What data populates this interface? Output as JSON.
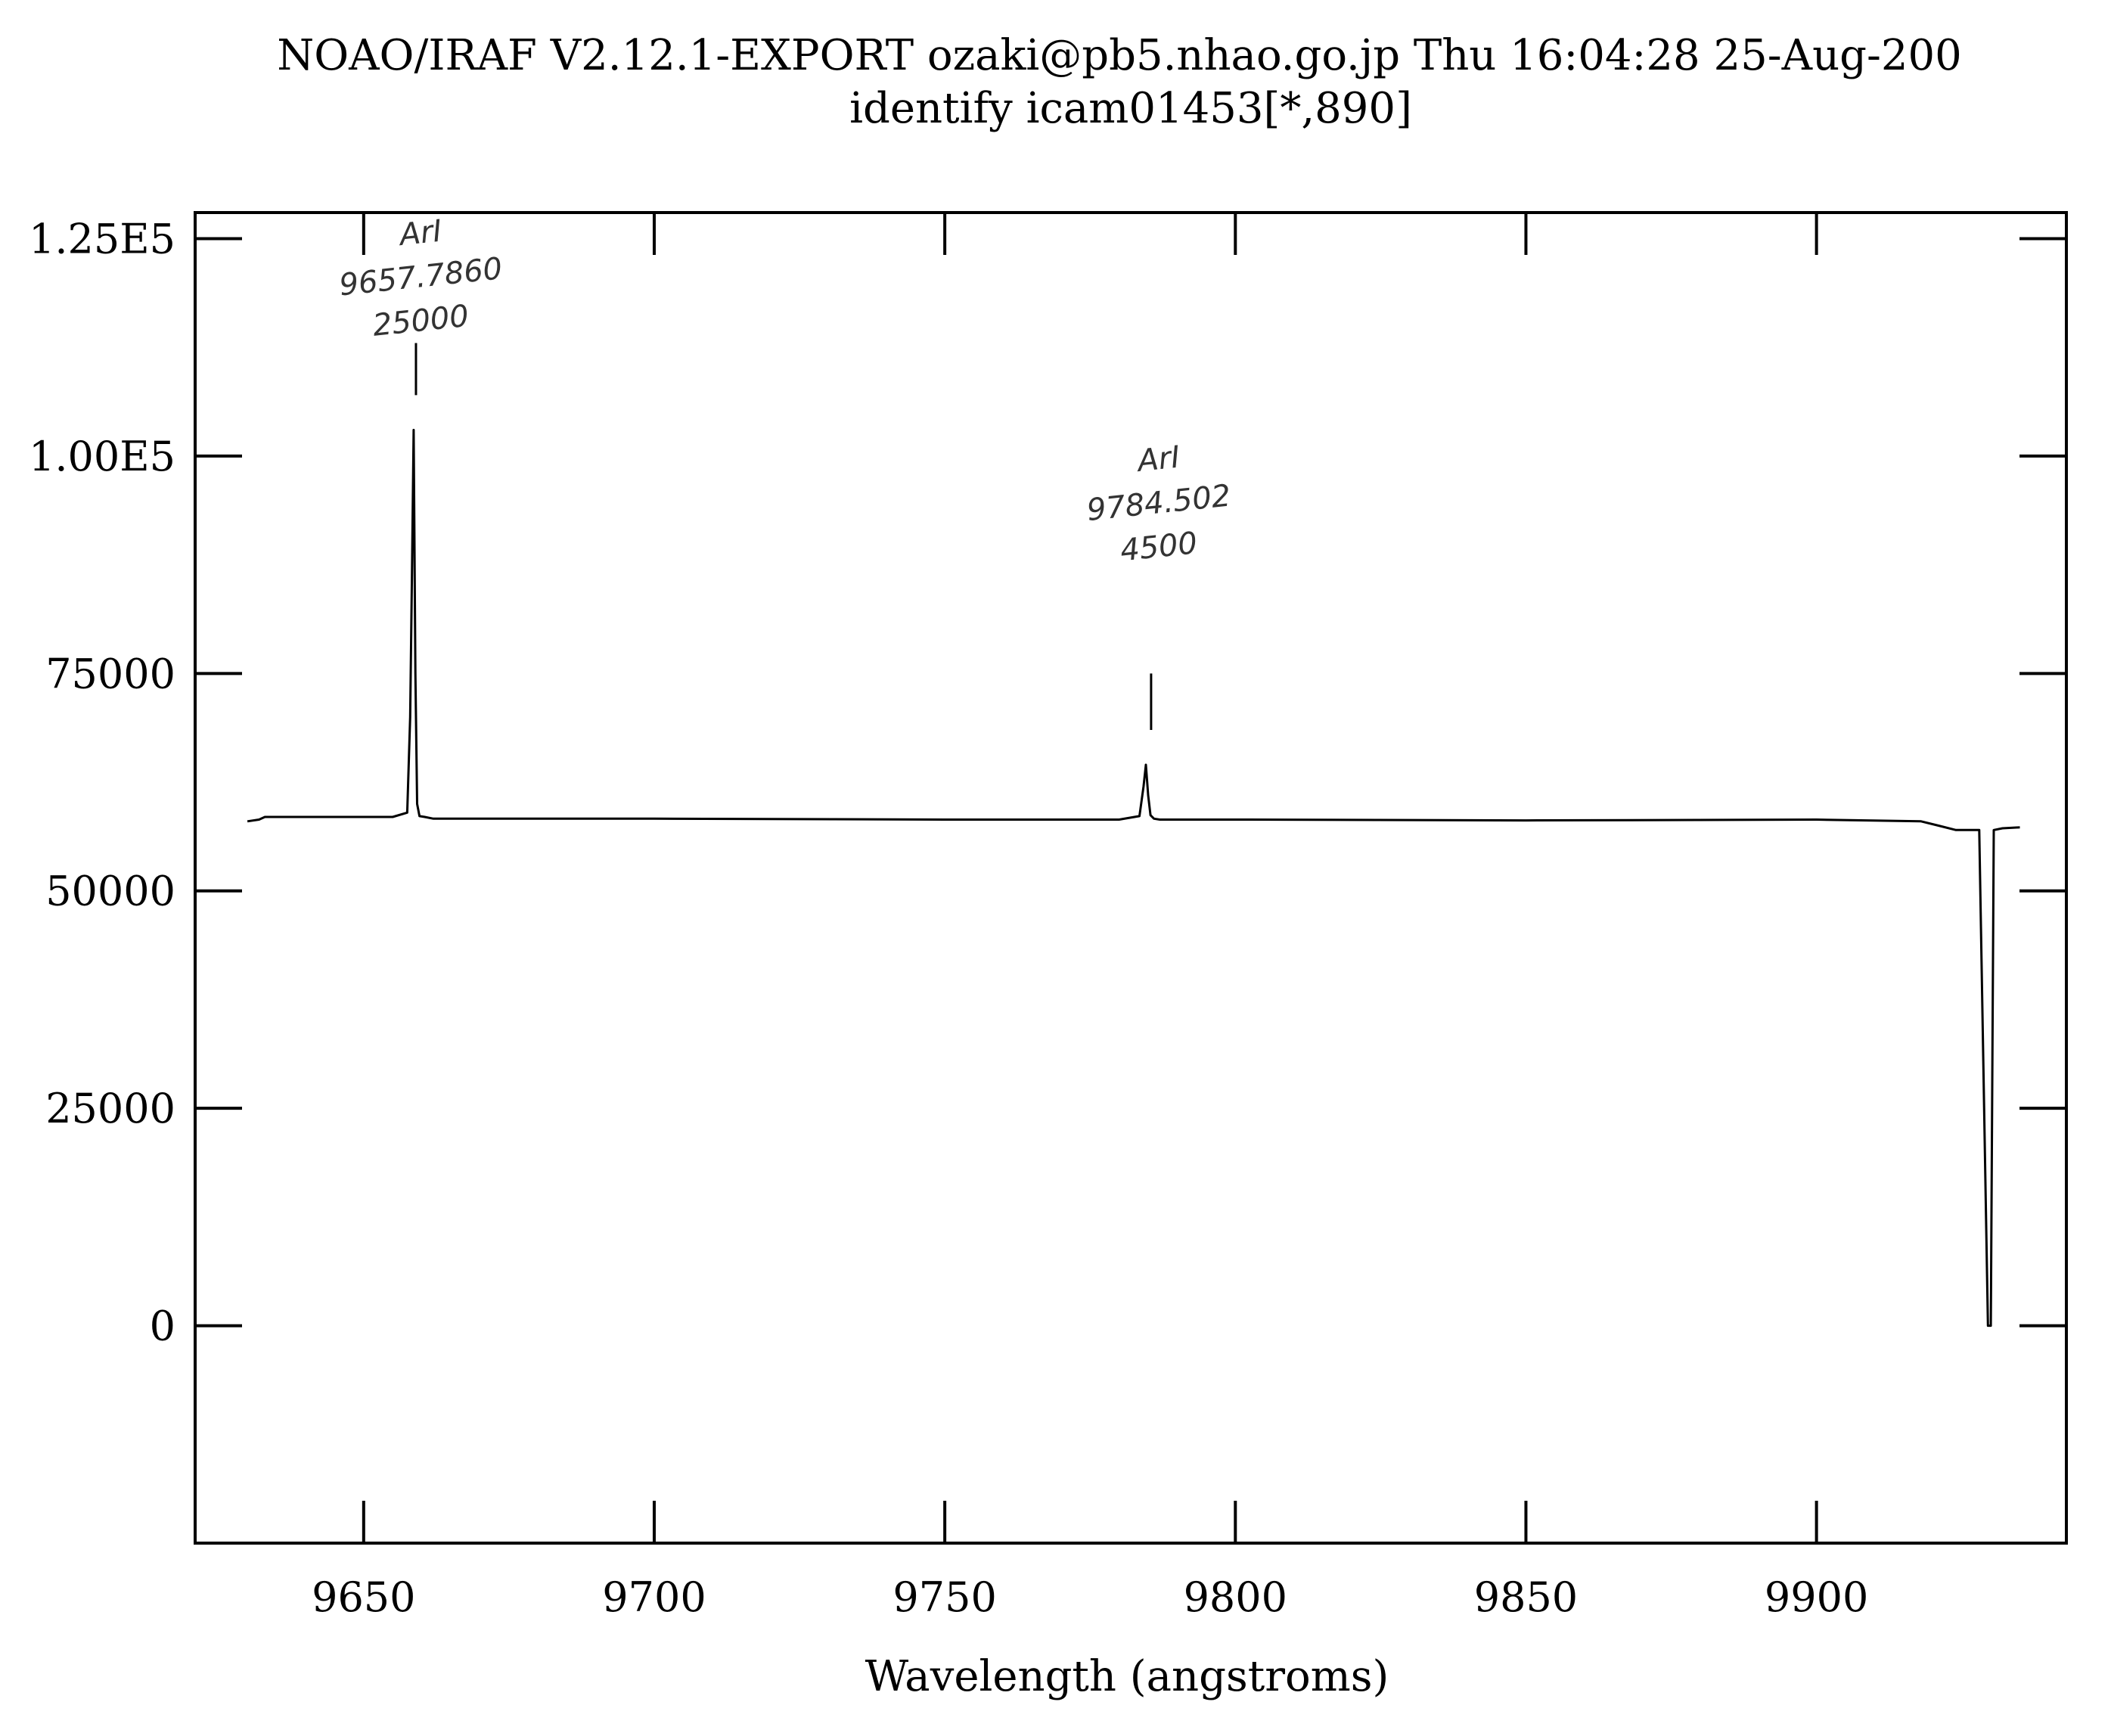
{
  "header": {
    "line1": "NOAO/IRAF V2.12.1-EXPORT ozaki@pb5.nhao.go.jp Thu 16:04:28 25-Aug-200",
    "line2": "identify icam01453[*,890]"
  },
  "chart_data": {
    "type": "line",
    "title": "NOAO/IRAF V2.12.1-EXPORT ozaki@pb5.nhao.go.jp Thu 16:04:28 25-Aug-200",
    "subtitle": "identify icam01453[*,890]",
    "xlabel": "Wavelength (angstroms)",
    "ylabel": "",
    "xlim": [
      9621,
      9943
    ],
    "ylim": [
      -25000,
      128000
    ],
    "xticks": [
      9650,
      9700,
      9750,
      9800,
      9850,
      9900
    ],
    "xtick_labels": [
      "9650",
      "9700",
      "9750",
      "9800",
      "9850",
      "9900"
    ],
    "yticks": [
      125000,
      100000,
      75000,
      50000,
      25000,
      0
    ],
    "ytick_labels": [
      "1.25E5",
      "1.00E5",
      "75000",
      "50000",
      "25000",
      "0"
    ],
    "grid": false,
    "series": [
      {
        "name": "",
        "x": [
          9630,
          9632,
          9633,
          9640,
          9650,
          9655,
          9657.5,
          9658.0,
          9658.3,
          9658.6,
          9658.9,
          9659.2,
          9659.6,
          9660.5,
          9662,
          9700,
          9750,
          9780,
          9783.5,
          9784.2,
          9784.6,
          9785.0,
          9785.4,
          9786.0,
          9787,
          9800,
          9850,
          9900,
          9918,
          9921,
          9924,
          9928,
          9929.5,
          9930,
          9930.5,
          9932,
          9935
        ],
        "y": [
          58000,
          58200,
          58500,
          58500,
          58500,
          58500,
          59000,
          70000,
          86000,
          103000,
          75000,
          60000,
          58600,
          58500,
          58300,
          58300,
          58200,
          58200,
          58600,
          62000,
          64500,
          61000,
          58700,
          58300,
          58200,
          58200,
          58100,
          58200,
          58000,
          57500,
          57000,
          57000,
          0,
          0,
          57000,
          57200,
          57300
        ]
      }
    ],
    "line_marks": [
      {
        "x": 9659,
        "y_from": 107000,
        "y_to": 113000
      },
      {
        "x": 9785.5,
        "y_from": 68500,
        "y_to": 75000
      }
    ],
    "annotations": [
      {
        "x": 9660,
        "y": 124500,
        "lines": [
          "ArI",
          "9657.7860",
          "25000"
        ]
      },
      {
        "x": 9787,
        "y": 98500,
        "lines": [
          "ArI",
          "9784.502",
          "4500"
        ]
      }
    ]
  }
}
